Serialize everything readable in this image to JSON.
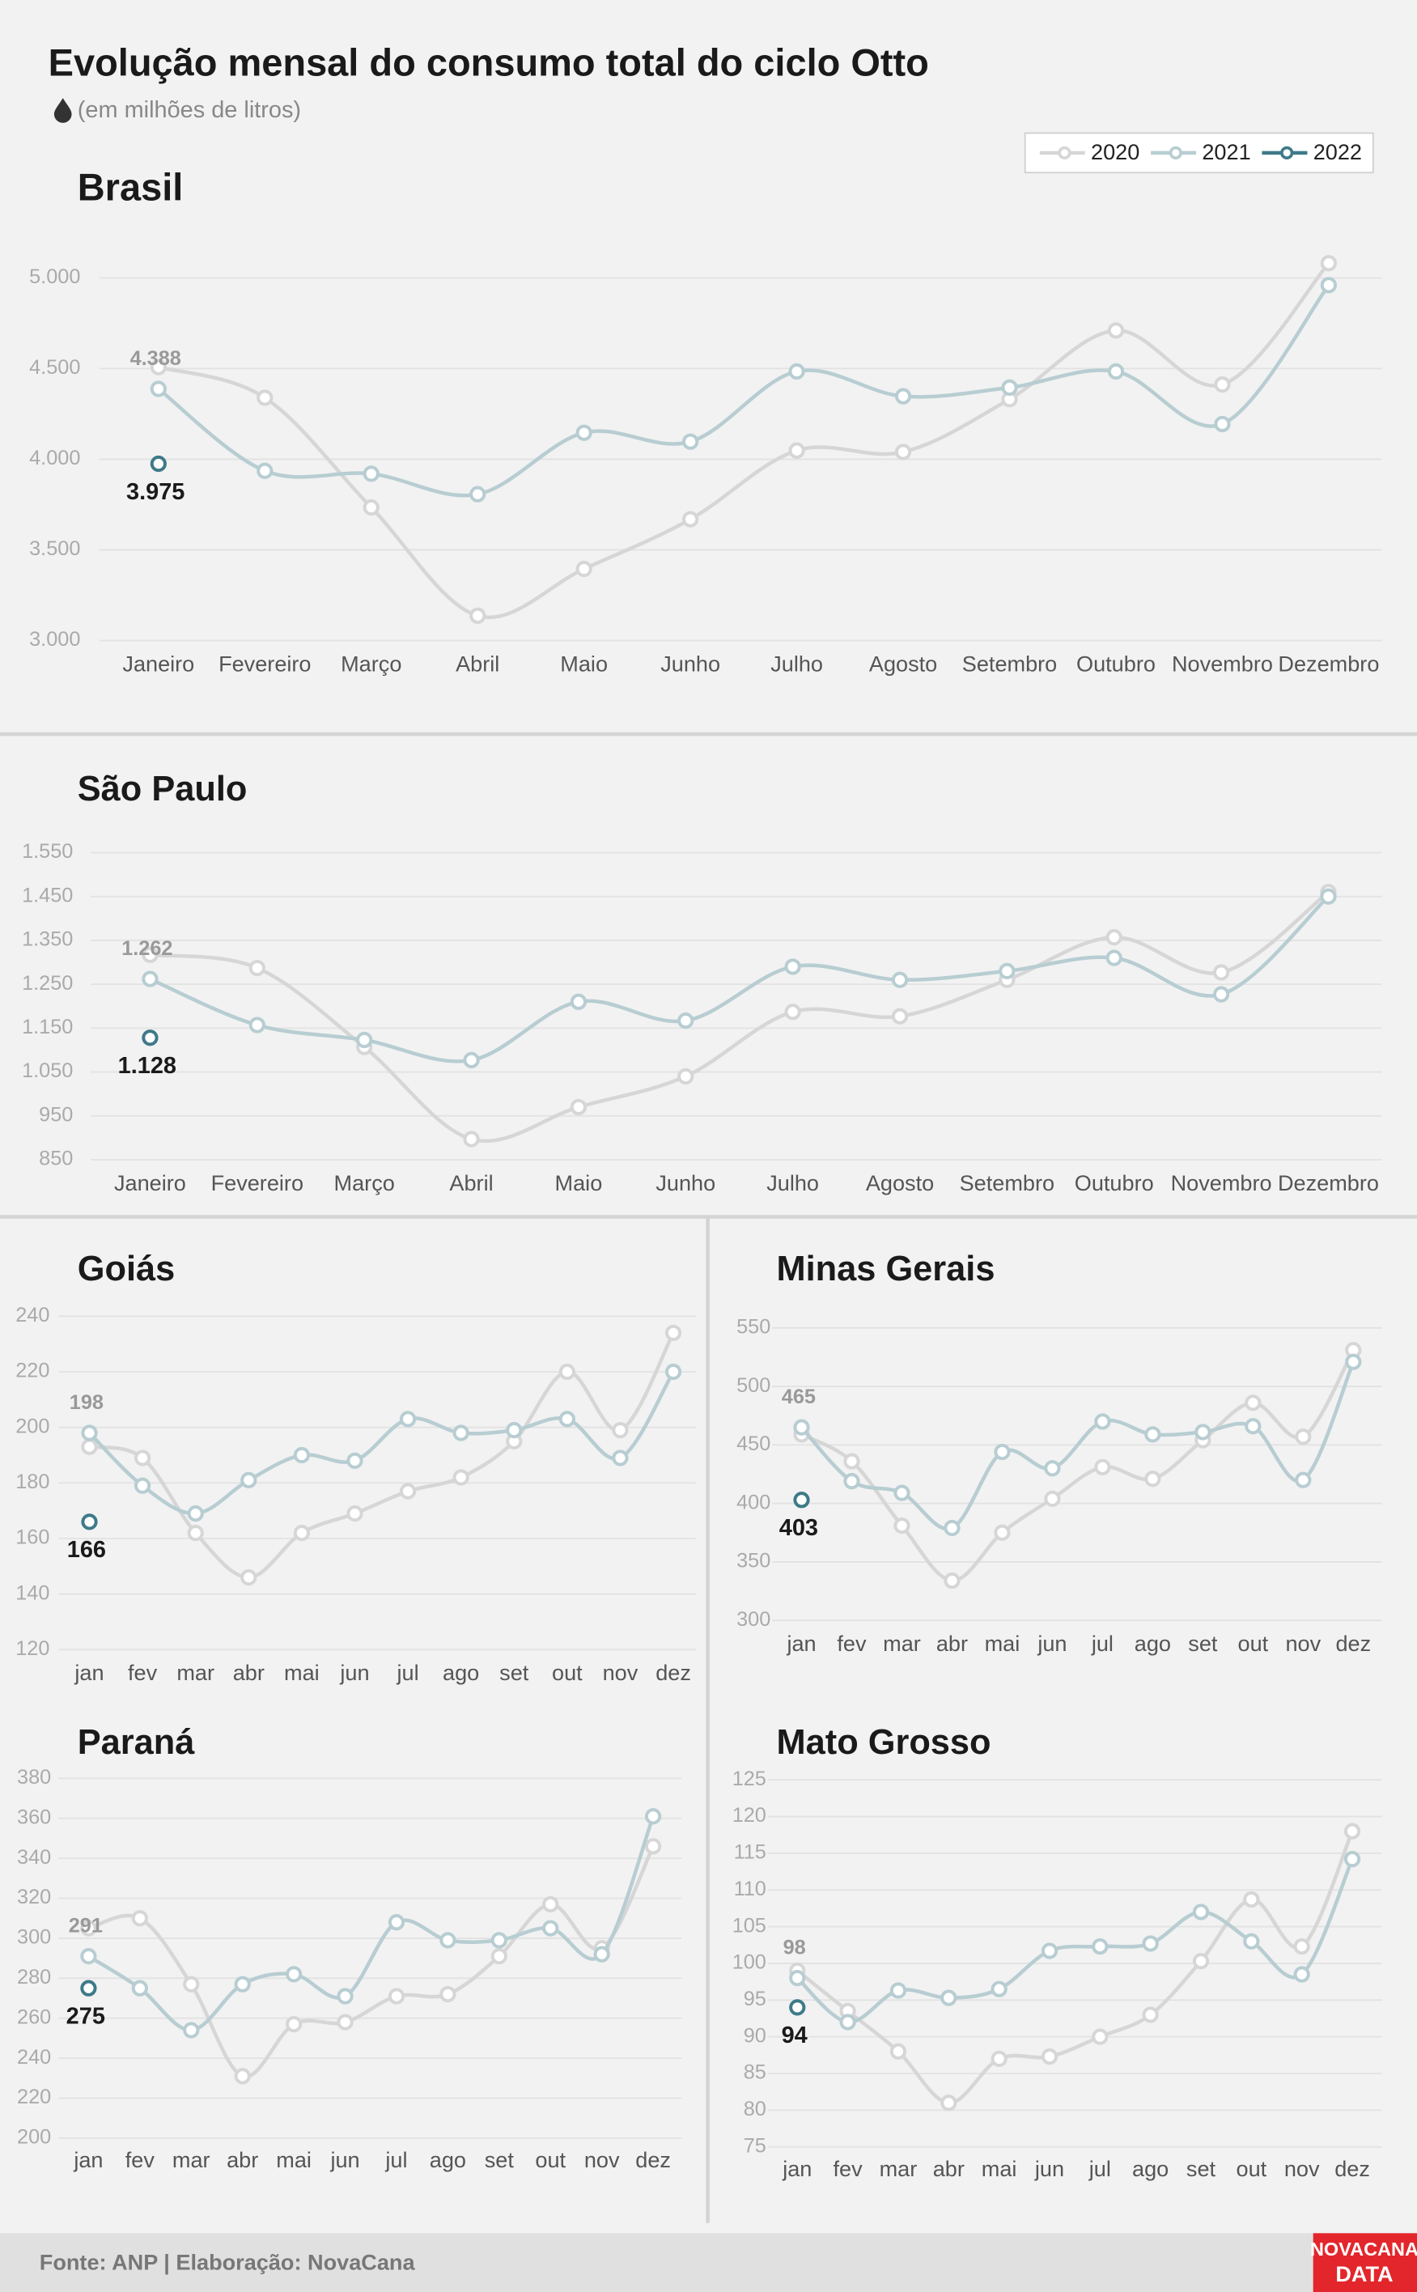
{
  "header": {
    "title": "Evolução mensal do consumo total do ciclo Otto",
    "subtitle": "(em milhões de litros)"
  },
  "chart_data": [
    {
      "type": "line",
      "title": "Brasil",
      "legend": "top-right",
      "grid": true,
      "categories": [
        "Janeiro",
        "Fevereiro",
        "Março",
        "Abril",
        "Maio",
        "Junho",
        "Julho",
        "Agosto",
        "Setembro",
        "Outubro",
        "Novembro",
        "Dezembro"
      ],
      "series": [
        {
          "name": "2020",
          "color": "#d6d6d6",
          "values": [
            4508,
            4339,
            3734,
            3137,
            3395,
            3669,
            4048,
            4040,
            4331,
            4710,
            4412,
            5081
          ]
        },
        {
          "name": "2021",
          "color": "#b7cdd2",
          "values": [
            4388,
            3936,
            3920,
            3807,
            4146,
            4097,
            4484,
            4347,
            4395,
            4484,
            4194,
            4960
          ],
          "value_labels": [
            "4.388",
            null,
            null,
            null,
            null,
            null,
            null,
            null,
            null,
            null,
            null,
            null
          ]
        },
        {
          "name": "2022",
          "color": "#3e7a89",
          "values": [
            3975,
            null,
            null,
            null,
            null,
            null,
            null,
            null,
            null,
            null,
            null,
            null
          ],
          "value_labels": [
            "3.975",
            null,
            null,
            null,
            null,
            null,
            null,
            null,
            null,
            null,
            null,
            null
          ]
        }
      ],
      "ylim": [
        3000,
        5000
      ],
      "yticks": [
        {
          "value": 3000,
          "label": "3.000"
        },
        {
          "value": 3500,
          "label": "3.500"
        },
        {
          "value": 4000,
          "label": "4.000"
        },
        {
          "value": 4500,
          "label": "4.500"
        },
        {
          "value": 5000,
          "label": "5.000"
        }
      ]
    },
    {
      "type": "line",
      "title": "São Paulo",
      "grid": true,
      "categories": [
        "Janeiro",
        "Fevereiro",
        "Março",
        "Abril",
        "Maio",
        "Junho",
        "Julho",
        "Agosto",
        "Setembro",
        "Outubro",
        "Novembro",
        "Dezembro"
      ],
      "series": [
        {
          "name": "2020",
          "color": "#d6d6d6",
          "values": [
            1317,
            1287,
            1107,
            897,
            970,
            1040,
            1187,
            1177,
            1260,
            1357,
            1277,
            1460
          ]
        },
        {
          "name": "2021",
          "color": "#b7cdd2",
          "values": [
            1262,
            1157,
            1123,
            1077,
            1210,
            1167,
            1290,
            1260,
            1280,
            1310,
            1227,
            1450
          ],
          "value_labels": [
            "1.262",
            null,
            null,
            null,
            null,
            null,
            null,
            null,
            null,
            null,
            null,
            null
          ]
        },
        {
          "name": "2022",
          "color": "#3e7a89",
          "values": [
            1128,
            null,
            null,
            null,
            null,
            null,
            null,
            null,
            null,
            null,
            null,
            null
          ],
          "value_labels": [
            "1.128",
            null,
            null,
            null,
            null,
            null,
            null,
            null,
            null,
            null,
            null,
            null
          ]
        }
      ],
      "ylim": [
        850,
        1550
      ],
      "yticks": [
        850,
        950,
        {
          "value": 1050,
          "label": "1.050"
        },
        {
          "value": 1150,
          "label": "1.150"
        },
        {
          "value": 1250,
          "label": "1.250"
        },
        {
          "value": 1350,
          "label": "1.350"
        },
        {
          "value": 1450,
          "label": "1.450"
        },
        {
          "value": 1550,
          "label": "1.550"
        }
      ]
    },
    {
      "type": "line",
      "title": "Goiás",
      "grid": true,
      "categories": [
        "jan",
        "fev",
        "mar",
        "abr",
        "mai",
        "jun",
        "jul",
        "ago",
        "set",
        "out",
        "nov",
        "dez"
      ],
      "series": [
        {
          "name": "2020",
          "color": "#d6d6d6",
          "values": [
            193,
            189,
            162,
            146,
            162,
            169,
            177,
            182,
            195,
            220,
            199,
            234
          ]
        },
        {
          "name": "2021",
          "color": "#b7cdd2",
          "values": [
            198,
            179,
            169,
            181,
            190,
            188,
            203,
            198,
            199,
            203,
            189,
            220
          ],
          "value_labels": [
            "198",
            null,
            null,
            null,
            null,
            null,
            null,
            null,
            null,
            null,
            null,
            null
          ]
        },
        {
          "name": "2022",
          "color": "#3e7a89",
          "values": [
            166,
            null,
            null,
            null,
            null,
            null,
            null,
            null,
            null,
            null,
            null,
            null
          ],
          "value_labels": [
            "166",
            null,
            null,
            null,
            null,
            null,
            null,
            null,
            null,
            null,
            null,
            null
          ]
        }
      ],
      "ylim": [
        120,
        240
      ],
      "yticks": [
        120,
        140,
        160,
        180,
        200,
        220,
        240
      ]
    },
    {
      "type": "line",
      "title": "Minas Gerais",
      "grid": true,
      "categories": [
        "jan",
        "fev",
        "mar",
        "abr",
        "mai",
        "jun",
        "jul",
        "ago",
        "set",
        "out",
        "nov",
        "dez"
      ],
      "series": [
        {
          "name": "2020",
          "color": "#d6d6d6",
          "values": [
            459,
            436,
            381,
            334,
            375,
            404,
            431,
            421,
            454,
            486,
            457,
            531
          ]
        },
        {
          "name": "2021",
          "color": "#b7cdd2",
          "values": [
            465,
            419,
            409,
            379,
            444,
            430,
            470,
            459,
            461,
            466,
            420,
            521
          ],
          "value_labels": [
            "465",
            null,
            null,
            null,
            null,
            null,
            null,
            null,
            null,
            null,
            null,
            null
          ]
        },
        {
          "name": "2022",
          "color": "#3e7a89",
          "values": [
            403,
            null,
            null,
            null,
            null,
            null,
            null,
            null,
            null,
            null,
            null,
            null
          ],
          "value_labels": [
            "403",
            null,
            null,
            null,
            null,
            null,
            null,
            null,
            null,
            null,
            null,
            null
          ]
        }
      ],
      "ylim": [
        300,
        550
      ],
      "yticks": [
        300,
        350,
        400,
        450,
        500,
        550
      ]
    },
    {
      "type": "line",
      "title": "Paraná",
      "grid": true,
      "categories": [
        "jan",
        "fev",
        "mar",
        "abr",
        "mai",
        "jun",
        "jul",
        "ago",
        "set",
        "out",
        "nov",
        "dez"
      ],
      "series": [
        {
          "name": "2020",
          "color": "#d6d6d6",
          "values": [
            305,
            310,
            277,
            231,
            257,
            258,
            271,
            272,
            291,
            317,
            295,
            346
          ]
        },
        {
          "name": "2021",
          "color": "#b7cdd2",
          "values": [
            291,
            275,
            254,
            277,
            282,
            271,
            308,
            299,
            299,
            305,
            292,
            361
          ],
          "value_labels": [
            "291",
            null,
            null,
            null,
            null,
            null,
            null,
            null,
            null,
            null,
            null,
            null
          ]
        },
        {
          "name": "2022",
          "color": "#3e7a89",
          "values": [
            275,
            null,
            null,
            null,
            null,
            null,
            null,
            null,
            null,
            null,
            null,
            null
          ],
          "value_labels": [
            "275",
            null,
            null,
            null,
            null,
            null,
            null,
            null,
            null,
            null,
            null,
            null
          ]
        }
      ],
      "ylim": [
        200,
        380
      ],
      "yticks": [
        200,
        220,
        240,
        260,
        280,
        300,
        320,
        340,
        360,
        380
      ]
    },
    {
      "type": "line",
      "title": "Mato Grosso",
      "grid": true,
      "categories": [
        "jan",
        "fev",
        "mar",
        "abr",
        "mai",
        "jun",
        "jul",
        "ago",
        "set",
        "out",
        "nov",
        "dez"
      ],
      "series": [
        {
          "name": "2020",
          "color": "#d6d6d6",
          "values": [
            99,
            93.5,
            88,
            81,
            87,
            87.3,
            90,
            93,
            100.3,
            108.7,
            102.3,
            118
          ]
        },
        {
          "name": "2021",
          "color": "#b7cdd2",
          "values": [
            98,
            92,
            96.3,
            95.3,
            96.5,
            101.7,
            102.3,
            102.7,
            107,
            103,
            98.5,
            114.2
          ],
          "value_labels": [
            "98",
            null,
            null,
            null,
            null,
            null,
            null,
            null,
            null,
            null,
            null,
            null
          ]
        },
        {
          "name": "2022",
          "color": "#3e7a89",
          "values": [
            94,
            null,
            null,
            null,
            null,
            null,
            null,
            null,
            null,
            null,
            null,
            null
          ],
          "value_labels": [
            "94",
            null,
            null,
            null,
            null,
            null,
            null,
            null,
            null,
            null,
            null,
            null
          ]
        }
      ],
      "ylim": [
        75,
        125
      ],
      "yticks": [
        75,
        80,
        85,
        90,
        95,
        100,
        105,
        110,
        115,
        120,
        125
      ]
    }
  ],
  "footer": {
    "source": "Fonte: ANP | Elaboração: NovaCana",
    "logo": [
      "NOVACANA",
      "DATA"
    ]
  }
}
